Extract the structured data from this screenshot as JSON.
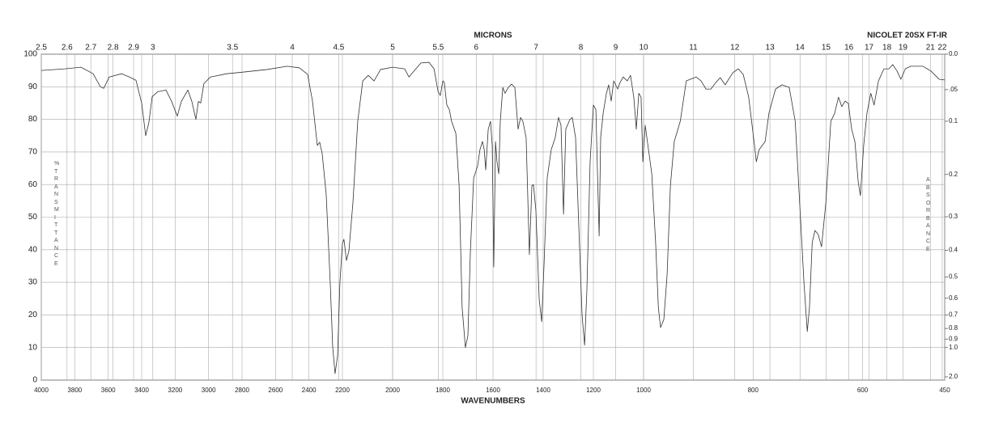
{
  "chart_data": {
    "type": "line",
    "title": "NICOLET 20SX FT-IR",
    "x_label": "WAVENUMBERS",
    "x2_label": "MICRONS",
    "y_label": "%TRANSMITTANCE",
    "y2_label": "ABSORBANCE",
    "color": "#333333",
    "grid": true,
    "xlim": [
      4000,
      450
    ],
    "xbreaks": [
      2200,
      1000
    ],
    "xticks": [
      4000,
      3800,
      3600,
      3400,
      3200,
      3000,
      2800,
      2600,
      2400,
      2200,
      2000,
      1800,
      1600,
      1400,
      1200,
      1000,
      800,
      600,
      450
    ],
    "x2scale": "microns",
    "x2ticks": [
      2.5,
      2.6,
      2.7,
      2.8,
      2.9,
      3,
      3.5,
      4,
      4.5,
      5,
      5.5,
      6,
      7,
      8,
      9,
      10,
      11,
      12,
      13,
      14,
      15,
      16,
      17,
      18,
      19,
      21,
      22
    ],
    "ylim": [
      0,
      100
    ],
    "yticks": [
      0,
      10,
      20,
      30,
      40,
      50,
      60,
      70,
      80,
      90,
      100
    ],
    "y2scale": "absorbance",
    "y2ticks": [
      {
        "value": 0,
        "label": "0.0"
      },
      {
        "value": 0.05,
        "label": ".05"
      },
      {
        "value": 0.1,
        "label": "0.1"
      },
      {
        "value": 0.2,
        "label": "0.2"
      },
      {
        "value": 0.3,
        "label": "0.3"
      },
      {
        "value": 0.4,
        "label": "0.4"
      },
      {
        "value": 0.5,
        "label": "0.5"
      },
      {
        "value": 0.6,
        "label": "0.6"
      },
      {
        "value": 0.7,
        "label": "0.7"
      },
      {
        "value": 0.8,
        "label": "0.8"
      },
      {
        "value": 0.9,
        "label": "0.9"
      },
      {
        "value": 1,
        "label": "1.0"
      },
      {
        "value": 2,
        "label": "2.0"
      }
    ],
    "x": [
      4000,
      3860,
      3763,
      3690,
      3647,
      3627,
      3594,
      3521,
      3473,
      3434,
      3400,
      3376,
      3357,
      3337,
      3303,
      3255,
      3221,
      3187,
      3163,
      3124,
      3100,
      3076,
      3061,
      3047,
      3028,
      2989,
      2892,
      2795,
      2650,
      2529,
      2457,
      2408,
      2379,
      2350,
      2336,
      2321,
      2297,
      2273,
      2258,
      2244,
      2229,
      2215,
      2200,
      2194,
      2184,
      2174,
      2158,
      2139,
      2119,
      2097,
      2074,
      2048,
      2000,
      1952,
      1935,
      1913,
      1887,
      1855,
      1835,
      1819,
      1810,
      1800,
      1794,
      1784,
      1774,
      1765,
      1748,
      1735,
      1723,
      1710,
      1700,
      1690,
      1677,
      1661,
      1652,
      1642,
      1635,
      1629,
      1619,
      1610,
      1603,
      1597,
      1590,
      1584,
      1577,
      1571,
      1561,
      1552,
      1539,
      1526,
      1513,
      1500,
      1490,
      1481,
      1468,
      1455,
      1445,
      1439,
      1429,
      1416,
      1406,
      1397,
      1384,
      1368,
      1352,
      1339,
      1329,
      1319,
      1310,
      1294,
      1284,
      1271,
      1258,
      1245,
      1235,
      1226,
      1213,
      1200,
      1190,
      1184,
      1177,
      1171,
      1161,
      1148,
      1139,
      1129,
      1119,
      1103,
      1094,
      1081,
      1065,
      1052,
      1039,
      1029,
      1019,
      1010,
      1003,
      997,
      993,
      985,
      978,
      973,
      969,
      963,
      957,
      951,
      944,
      933,
      922,
      904,
      895,
      886,
      877,
      868,
      860,
      851,
      837,
      827,
      818,
      808,
      800,
      794,
      789,
      778,
      771,
      759,
      747,
      734,
      723,
      715,
      707,
      701,
      697,
      692,
      687,
      681,
      675,
      667,
      658,
      651,
      644,
      638,
      632,
      626,
      620,
      614,
      608,
      604,
      598,
      592,
      585,
      579,
      571,
      561,
      552,
      545,
      537,
      530,
      522,
      512,
      490,
      475,
      460,
      450
    ],
    "values": [
      95,
      95.5,
      96,
      94,
      90,
      89.5,
      93,
      94,
      93,
      92,
      85,
      75,
      79,
      87,
      88.5,
      89,
      85.5,
      81,
      85.5,
      89,
      85.5,
      80,
      85.5,
      85,
      91,
      93,
      94,
      94.5,
      95.3,
      96.3,
      95.8,
      93.8,
      85.6,
      72,
      73,
      69.5,
      57,
      30,
      10,
      2,
      7.4,
      30,
      42,
      43.2,
      36.7,
      39.7,
      54.6,
      79.4,
      91.8,
      93.5,
      91.8,
      95.3,
      96,
      95.5,
      93,
      95,
      97.3,
      97.5,
      95.5,
      88.6,
      87.3,
      91.8,
      91.3,
      84.4,
      83,
      79.4,
      75.7,
      59.6,
      22.3,
      10,
      13.6,
      39.7,
      62,
      65.8,
      70.7,
      73.2,
      70.7,
      64.5,
      77,
      79.4,
      72,
      34.7,
      73.2,
      67,
      63.3,
      79.4,
      89.8,
      88,
      89.8,
      90.8,
      89.8,
      77,
      80.6,
      79.4,
      74.4,
      38.5,
      59.6,
      60,
      52,
      24.8,
      17.9,
      34.7,
      62,
      70.7,
      74.4,
      80.6,
      78.2,
      50.9,
      77,
      79.9,
      80.6,
      74.4,
      47,
      19.9,
      10.7,
      27.3,
      67,
      84.4,
      83,
      64.5,
      44.2,
      74.4,
      81.9,
      88,
      90.6,
      85.6,
      91.8,
      89.3,
      91.3,
      93,
      91.8,
      93.5,
      86.8,
      77,
      88,
      86.8,
      67,
      78.2,
      73.2,
      63.3,
      42.2,
      22.3,
      16.1,
      18.6,
      32.3,
      59.6,
      73.2,
      79.4,
      91.8,
      93,
      91.8,
      89.3,
      89.3,
      91.3,
      92.8,
      90.6,
      94.3,
      95.5,
      93.8,
      86.8,
      75.7,
      67,
      70.7,
      73.2,
      81.9,
      89.3,
      90.6,
      89.8,
      79.4,
      54.6,
      29.8,
      14.9,
      22.3,
      42.2,
      45.9,
      44.7,
      40.9,
      54.6,
      79.4,
      81.9,
      86.8,
      83.9,
      85.6,
      84.9,
      77,
      73.2,
      60.8,
      56.6,
      72,
      81.9,
      88,
      84.4,
      91.8,
      95.5,
      95.5,
      96.8,
      94.8,
      92.3,
      95.5,
      96.3,
      96.3,
      94.8,
      92.3,
      92.1
    ]
  }
}
